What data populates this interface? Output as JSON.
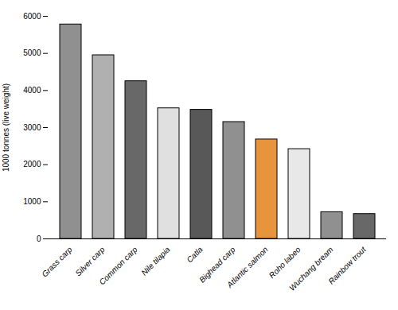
{
  "chart_data": {
    "type": "bar",
    "categories": [
      "Grass carp",
      "Silver carp",
      "Common carp",
      "Nile tilapia",
      "Catla",
      "Bighead carp",
      "Atlantic salmon",
      "Roho labeo",
      "Wuchang bream",
      "Rainbow trout"
    ],
    "values": [
      5780,
      4950,
      4250,
      3520,
      3480,
      3150,
      2680,
      2420,
      720,
      670
    ],
    "colors": [
      "#909090",
      "#b0b0b0",
      "#686868",
      "#e0e0e0",
      "#585858",
      "#909090",
      "#e8943a",
      "#e8e8e8",
      "#909090",
      "#686868"
    ],
    "ylabel": "1000 tonnes (live weight)",
    "ylim": [
      0,
      6000
    ],
    "yticks": [
      0,
      1000,
      2000,
      3000,
      4000,
      5000,
      6000
    ],
    "grid": false
  }
}
